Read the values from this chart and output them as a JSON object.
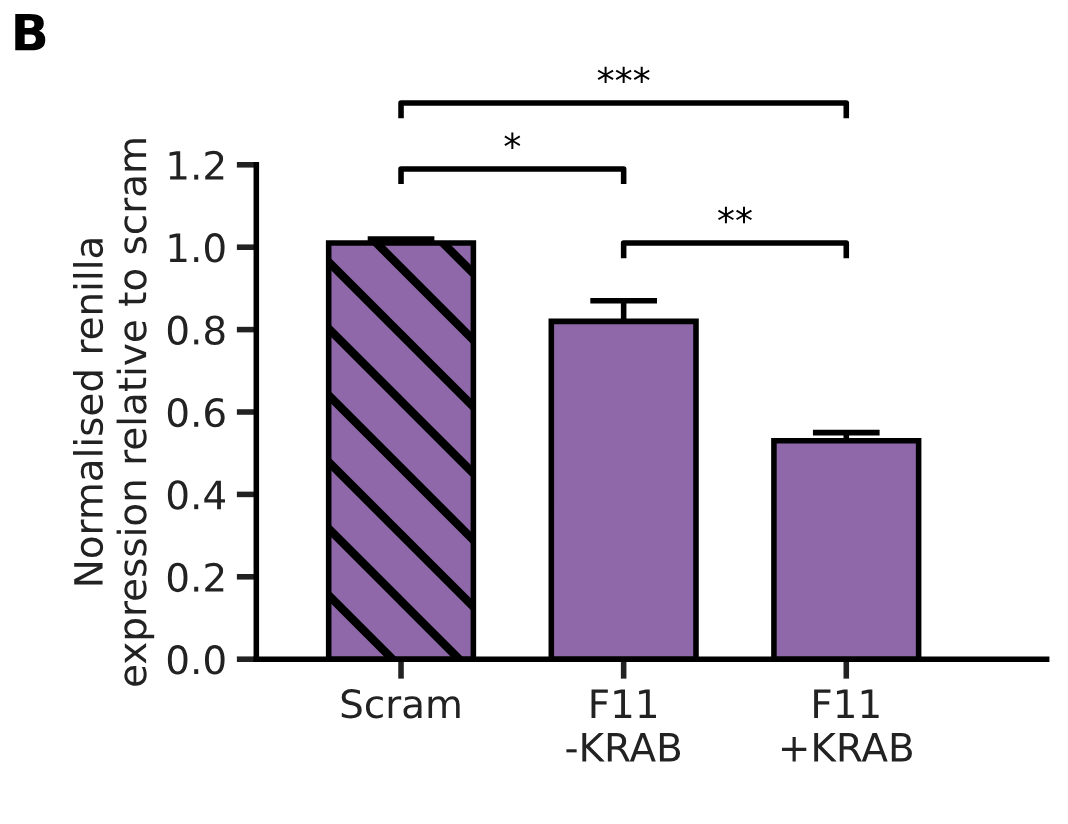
{
  "chart_data": {
    "type": "bar",
    "title": "B",
    "ylabel": "Normalised renilla\nexpression relative to scram",
    "categories": [
      "Scram",
      "F11\n-KRAB",
      "F11\n+KRAB"
    ],
    "values": [
      1.01,
      0.82,
      0.53
    ],
    "errors": [
      0.01,
      0.05,
      0.02
    ],
    "color": "#8e68a8",
    "ylim": [
      0,
      1.2
    ],
    "yticks": [
      {
        "value": 0,
        "label": "0.0"
      },
      0.2,
      0.4,
      0.6,
      0.8,
      {
        "value": 1,
        "label": "1.0"
      },
      1.2
    ],
    "annotations": [
      "*",
      "**",
      "***"
    ],
    "grid": false
  }
}
